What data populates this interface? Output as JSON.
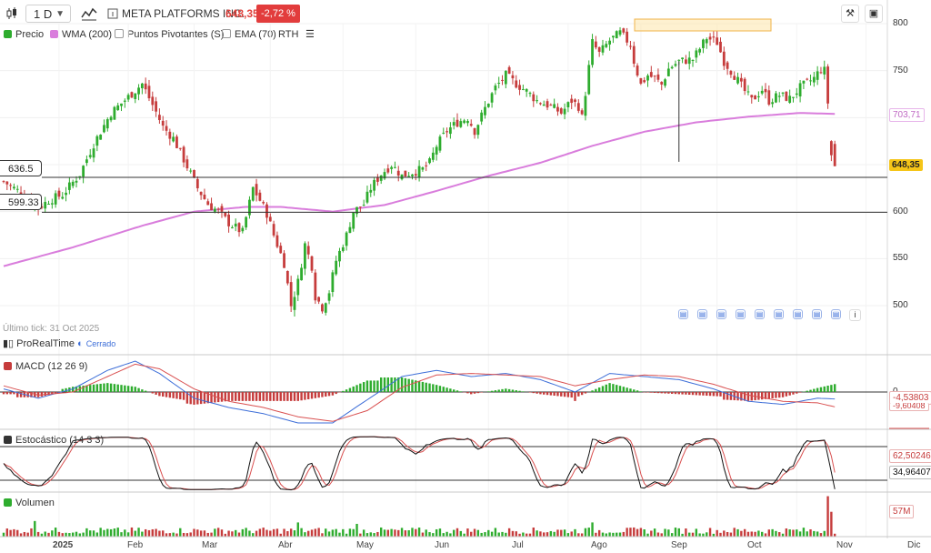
{
  "toolbar": {
    "timeframe": "1 D",
    "symbol_name": "META PLATFORMS INC.",
    "last_price": "648,35",
    "change_pct": "-2,72 %"
  },
  "legend": {
    "precio": "Precio",
    "wma": "WMA (200)",
    "pivots": "Puntos Pivotantes (S)",
    "ema": "EMA (70)",
    "rth": "RTH"
  },
  "colors": {
    "up": "#2eac2e",
    "down": "#c63c3c",
    "wma": "#d97ddc",
    "macd_line": "#3d6ed8",
    "signal_line": "#d95050",
    "stoch_k": "#111111",
    "stoch_d": "#d95050"
  },
  "price_axis": {
    "ticks": [
      "800",
      "750",
      "700",
      "650",
      "600",
      "550",
      "500"
    ],
    "wma_value": "703,71",
    "last_value": "648,35"
  },
  "levels": [
    {
      "label": "636.5",
      "value": 636.5
    },
    {
      "label": "599.33",
      "value": 599.33
    }
  ],
  "footer": {
    "last_tick": "Último tick: 31 Oct 2025",
    "brand": "ProRealTime",
    "status": "Cerrado"
  },
  "macd": {
    "title": "MACD (12 26 9)",
    "zero_label": "0",
    "value1": "-4,53803",
    "value2": "-9,60408"
  },
  "stoch": {
    "title": "Estocástico (14 3 3)",
    "value_d": "62,50246",
    "value_k": "34,96407"
  },
  "volume": {
    "title": "Volumen",
    "value": "57M"
  },
  "months": [
    "2025",
    "Feb",
    "Mar",
    "Abr",
    "May",
    "Jun",
    "Jul",
    "Ago",
    "Sep",
    "Oct",
    "Nov",
    "Dic"
  ],
  "chart_data": {
    "type": "candlestick",
    "ylim": [
      480,
      810
    ],
    "price_path": [
      [
        0,
        632
      ],
      [
        5,
        620
      ],
      [
        10,
        604
      ],
      [
        13,
        612
      ],
      [
        17,
        618
      ],
      [
        22,
        640
      ],
      [
        26,
        672
      ],
      [
        31,
        705
      ],
      [
        36,
        722
      ],
      [
        40,
        736
      ],
      [
        44,
        706
      ],
      [
        46,
        690
      ],
      [
        49,
        678
      ],
      [
        53,
        648
      ],
      [
        56,
        625
      ],
      [
        59,
        608
      ],
      [
        62,
        600
      ],
      [
        65,
        588
      ],
      [
        69,
        578
      ],
      [
        72,
        625
      ],
      [
        74,
        612
      ],
      [
        76,
        598
      ],
      [
        78,
        575
      ],
      [
        81,
        545
      ],
      [
        83,
        500
      ],
      [
        85,
        525
      ],
      [
        87,
        565
      ],
      [
        89,
        542
      ],
      [
        90,
        510
      ],
      [
        92,
        498
      ],
      [
        94,
        515
      ],
      [
        96,
        548
      ],
      [
        99,
        575
      ],
      [
        101,
        600
      ],
      [
        104,
        608
      ],
      [
        106,
        625
      ],
      [
        109,
        640
      ],
      [
        112,
        650
      ],
      [
        115,
        638
      ],
      [
        118,
        642
      ],
      [
        121,
        645
      ],
      [
        123,
        652
      ],
      [
        125,
        670
      ],
      [
        128,
        686
      ],
      [
        131,
        695
      ],
      [
        134,
        700
      ],
      [
        136,
        686
      ],
      [
        139,
        710
      ],
      [
        142,
        732
      ],
      [
        145,
        745
      ],
      [
        148,
        736
      ],
      [
        151,
        728
      ],
      [
        154,
        718
      ],
      [
        158,
        712
      ],
      [
        161,
        705
      ],
      [
        164,
        718
      ],
      [
        166,
        712
      ],
      [
        167,
        700
      ],
      [
        170,
        780
      ],
      [
        172,
        768
      ],
      [
        175,
        782
      ],
      [
        178,
        790
      ],
      [
        181,
        778
      ],
      [
        182,
        760
      ],
      [
        184,
        735
      ],
      [
        186,
        745
      ],
      [
        188,
        742
      ],
      [
        190,
        735
      ],
      [
        192,
        752
      ],
      [
        195,
        760
      ],
      [
        199,
        762
      ],
      [
        203,
        785
      ],
      [
        206,
        780
      ],
      [
        208,
        760
      ],
      [
        211,
        745
      ],
      [
        214,
        728
      ],
      [
        216,
        718
      ],
      [
        219,
        730
      ],
      [
        221,
        718
      ],
      [
        224,
        724
      ],
      [
        227,
        720
      ],
      [
        230,
        732
      ],
      [
        234,
        742
      ],
      [
        236,
        752
      ],
      [
        237,
        750
      ],
      [
        238,
        716
      ],
      [
        239,
        660
      ],
      [
        240,
        645
      ]
    ],
    "wma200": [
      [
        0,
        542
      ],
      [
        20,
        562
      ],
      [
        40,
        585
      ],
      [
        55,
        600
      ],
      [
        70,
        605
      ],
      [
        80,
        605
      ],
      [
        95,
        600
      ],
      [
        110,
        607
      ],
      [
        125,
        622
      ],
      [
        140,
        638
      ],
      [
        155,
        652
      ],
      [
        170,
        670
      ],
      [
        185,
        685
      ],
      [
        200,
        695
      ],
      [
        215,
        701
      ],
      [
        230,
        705
      ],
      [
        240,
        704
      ]
    ],
    "macd_line": [
      [
        0,
        2
      ],
      [
        10,
        -4
      ],
      [
        20,
        2
      ],
      [
        30,
        14
      ],
      [
        38,
        20
      ],
      [
        45,
        12
      ],
      [
        55,
        -4
      ],
      [
        65,
        -10
      ],
      [
        75,
        -14
      ],
      [
        85,
        -20
      ],
      [
        95,
        -20
      ],
      [
        105,
        -5
      ],
      [
        115,
        10
      ],
      [
        125,
        14
      ],
      [
        135,
        10
      ],
      [
        145,
        12
      ],
      [
        155,
        8
      ],
      [
        165,
        0
      ],
      [
        175,
        12
      ],
      [
        185,
        10
      ],
      [
        195,
        8
      ],
      [
        205,
        2
      ],
      [
        215,
        -6
      ],
      [
        225,
        -8
      ],
      [
        235,
        -4
      ],
      [
        240,
        -4.5
      ]
    ],
    "signal_line": [
      [
        0,
        4
      ],
      [
        10,
        -2
      ],
      [
        20,
        0
      ],
      [
        30,
        10
      ],
      [
        38,
        18
      ],
      [
        45,
        15
      ],
      [
        55,
        2
      ],
      [
        65,
        -6
      ],
      [
        75,
        -10
      ],
      [
        85,
        -16
      ],
      [
        95,
        -19
      ],
      [
        105,
        -12
      ],
      [
        115,
        3
      ],
      [
        125,
        11
      ],
      [
        135,
        12
      ],
      [
        145,
        11
      ],
      [
        155,
        10
      ],
      [
        165,
        4
      ],
      [
        175,
        8
      ],
      [
        185,
        11
      ],
      [
        195,
        10
      ],
      [
        205,
        5
      ],
      [
        215,
        -2
      ],
      [
        225,
        -6
      ],
      [
        235,
        -7
      ],
      [
        240,
        -9.6
      ]
    ],
    "volume_spikes": [
      {
        "bar": 9,
        "value": 22
      },
      {
        "bar": 85,
        "value": 20
      },
      {
        "bar": 102,
        "value": 18
      },
      {
        "bar": 170,
        "value": 20
      },
      {
        "bar": 238,
        "value": 57
      },
      {
        "bar": 239,
        "value": 35
      }
    ]
  }
}
